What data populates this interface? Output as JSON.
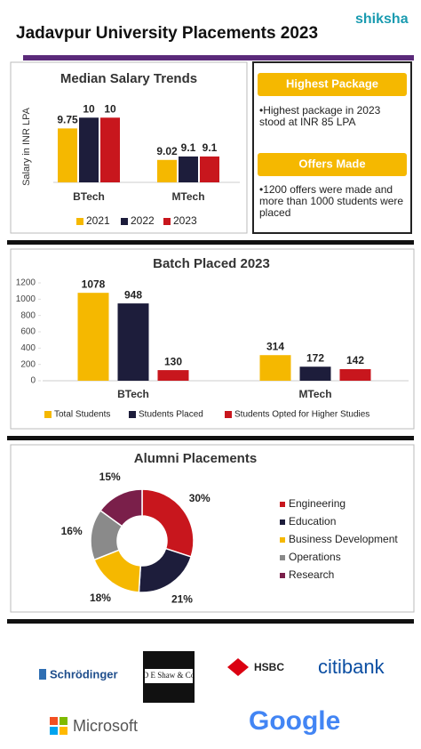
{
  "header": {
    "title": "Jadavpur University Placements 2023",
    "brand": "shiksha"
  },
  "info": [
    {
      "heading": "Highest Package",
      "text": "•Highest package in 2023 stood at INR 85 LPA"
    },
    {
      "heading": "Offers Made",
      "text": "•1200 offers were made and more than 1000 students were placed"
    }
  ],
  "chart_data": [
    {
      "type": "bar",
      "title": "Median Salary Trends",
      "y_label": "Salary in INR LPA",
      "categories": [
        "BTech",
        "MTech"
      ],
      "ylim": [
        8.5,
        10.5
      ],
      "series": [
        {
          "name": "2021",
          "color": "#f5b800",
          "values": [
            9.75,
            9.02
          ]
        },
        {
          "name": "2022",
          "color": "#1d1d3b",
          "values": [
            10,
            9.1
          ]
        },
        {
          "name": "2023",
          "color": "#c8161d",
          "values": [
            10,
            9.1
          ]
        }
      ]
    },
    {
      "type": "bar",
      "title": "Batch Placed 2023",
      "categories": [
        "BTech",
        "MTech"
      ],
      "ylim": [
        0,
        1200
      ],
      "yticks": [
        0,
        200,
        400,
        600,
        800,
        1000,
        1200
      ],
      "series": [
        {
          "name": "Total Students",
          "color": "#f5b800",
          "values": [
            1078,
            314
          ]
        },
        {
          "name": "Students Placed",
          "color": "#1d1d3b",
          "values": [
            948,
            172
          ]
        },
        {
          "name": "Students Opted for Higher Studies",
          "color": "#c8161d",
          "values": [
            130,
            142
          ]
        }
      ]
    },
    {
      "type": "pie",
      "title": "Alumni Placements",
      "categories": [
        "Engineering",
        "Education",
        "Business Development",
        "Operations",
        "Research"
      ],
      "values": [
        30,
        21,
        18,
        16,
        15
      ],
      "value_labels": [
        "30%",
        "21%",
        "18%",
        "16%",
        "15%"
      ],
      "colors": [
        "#c8161d",
        "#1d1d3b",
        "#f5b800",
        "#8a8a8a",
        "#7a1f4a"
      ]
    }
  ],
  "logos": [
    "Schrödinger",
    "D E Shaw & Co",
    "HSBC",
    "citibank",
    "Microsoft",
    "Google"
  ]
}
